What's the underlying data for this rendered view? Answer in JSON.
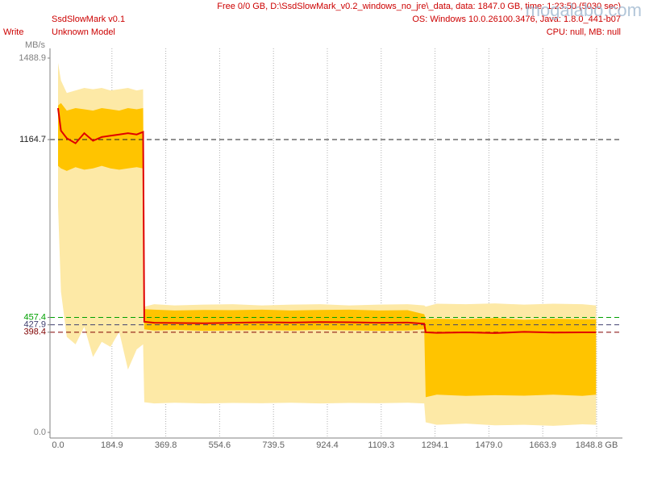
{
  "chart_data": {
    "type": "line",
    "title": "SsdSlowMark v0.1",
    "mode": "Write",
    "model": "Unknown Model",
    "y_label": "MB/s",
    "header": [
      "Free 0/0 GB, D:\\SsdSlowMark_v0.2_windows_no_jre\\_data, data: 1847.0 GB, time: 1:23:50 (5030 sec)",
      "OS: Windows 10.0.26100.3476, Java: 1.8.0_441-b07",
      "CPU: null, MB: null"
    ],
    "watermark": "mogalabo.com",
    "x": [
      0,
      10,
      30,
      60,
      90,
      120,
      150,
      180,
      210,
      240,
      270,
      292,
      296,
      330,
      400,
      500,
      600,
      700,
      800,
      900,
      1000,
      1100,
      1200,
      1257,
      1262,
      1300,
      1400,
      1500,
      1600,
      1700,
      1800,
      1847
    ],
    "bands": [
      {
        "color": "#fde9a6",
        "upper": [
          1470,
          1400,
          1350,
          1360,
          1370,
          1365,
          1370,
          1360,
          1365,
          1370,
          1360,
          1365,
          500,
          510,
          505,
          508,
          510,
          505,
          508,
          510,
          505,
          508,
          510,
          505,
          500,
          512,
          510,
          513,
          508,
          512,
          510,
          505
        ],
        "lower": [
          900,
          560,
          380,
          350,
          420,
          300,
          360,
          340,
          400,
          250,
          330,
          350,
          120,
          115,
          118,
          115,
          117,
          116,
          118,
          115,
          117,
          116,
          118,
          115,
          40,
          30,
          35,
          28,
          30,
          26,
          32,
          30
        ]
      },
      {
        "color": "#ffc400",
        "upper": [
          1300,
          1310,
          1280,
          1290,
          1285,
          1280,
          1290,
          1285,
          1280,
          1290,
          1285,
          1290,
          490,
          488,
          485,
          487,
          486,
          488,
          485,
          487,
          488,
          485,
          486,
          470,
          450,
          452,
          450,
          455,
          448,
          452,
          450,
          450
        ],
        "lower": [
          1060,
          1050,
          1040,
          1055,
          1045,
          1050,
          1060,
          1050,
          1045,
          1050,
          1055,
          1050,
          410,
          405,
          408,
          404,
          406,
          407,
          405,
          408,
          406,
          404,
          405,
          410,
          140,
          150,
          145,
          148,
          146,
          150,
          145,
          150
        ]
      }
    ],
    "series": [
      {
        "color": "#e00000",
        "values": [
          1290,
          1200,
          1170,
          1150,
          1190,
          1160,
          1175,
          1180,
          1185,
          1190,
          1185,
          1195,
          440,
          436,
          435,
          434,
          436,
          438,
          437,
          439,
          438,
          436,
          437,
          432,
          398,
          396,
          398,
          395,
          400,
          397,
          398,
          398
        ]
      }
    ],
    "ref_lines": [
      {
        "value": 1164.7,
        "color": "#202020"
      },
      {
        "value": 457.4,
        "color": "#00a000"
      },
      {
        "value": 427.9,
        "color": "#404070"
      },
      {
        "value": 398.4,
        "color": "#800000"
      }
    ],
    "xlim": [
      0,
      1848.8
    ],
    "ylim": [
      0,
      1488.9
    ],
    "xticks": [
      {
        "value": 0,
        "label": "0.0"
      },
      184.9,
      369.8,
      554.6,
      739.5,
      924.4,
      1109.3,
      1294.1,
      {
        "value": 1479,
        "label": "1479.0"
      },
      1663.9,
      {
        "value": 1848.8,
        "label": "1848.8 GB"
      }
    ],
    "yticks": [
      {
        "value": 0,
        "label": "0.0"
      },
      398.4,
      427.9,
      457.4,
      1164.7,
      1488.9
    ],
    "grid": true
  }
}
